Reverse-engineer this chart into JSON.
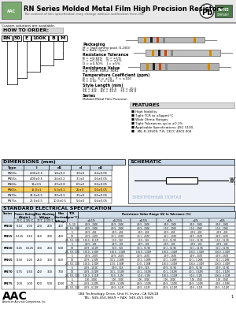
{
  "title": "RN Series Molded Metal Film High Precision Resistors",
  "subtitle": "The content of this specification may change without notification from the",
  "custom": "Custom solutions are available.",
  "order_parts": [
    "RN",
    "50",
    "E",
    "100K",
    "B",
    "M"
  ],
  "packaging_label": "Packaging",
  "packaging_text": "M = Tape ammo pack (1,000)\nB = Bulk (1pcs)",
  "resistance_tol_label": "Resistance Tolerance",
  "resistance_tol_lines": [
    "B = ±0.10%    E = ±1%",
    "C = ±0.25%    D = ±2%",
    "D = ±0.50%    J = ±5%"
  ],
  "resistance_val_label": "Resistance Value",
  "resistance_val_text": "e.g. 100R, 60R2, 30K1",
  "temp_coef_label": "Temperature Coefficient (ppm)",
  "temp_coef_lines": [
    "B = ±5    E = ±25    F = ±100",
    "R = ±10    C = ±50"
  ],
  "style_length_label": "Style Length (mm)",
  "style_length_lines": [
    "50 = 2.6    60 = 10.5    70 = 20.0",
    "55 = 4.8    65 = 15.0    75 = 25.0"
  ],
  "series_label": "Series",
  "series_text": "Molded Metal Film Precision",
  "features_label": "FEATURES",
  "features": [
    "High Stability",
    "Tight TCR to ±5ppm/°C",
    "Wide Ohmic Ranges",
    "Tight Tolerances up to ±0.1%",
    "Applicable Specifications: JISC 5100,",
    "  MIL-R-10509, T-R, CECC 4001 004"
  ],
  "schematic_label": "SCHEMATIC",
  "dimensions_label": "DIMENSIONS (mm)",
  "dim_headers": [
    "Type",
    "l",
    "d1",
    "d",
    "d2"
  ],
  "dim_col_ws": [
    28,
    32,
    28,
    24,
    28
  ],
  "dim_rows": [
    [
      "RN50s",
      "2.00±0.5",
      "1.8±0.2",
      "3.0±0",
      "0.4±0.05"
    ],
    [
      "RN55s",
      "4.00±0.5",
      "2.4±0.2",
      "3.1±0",
      "0.6±0.05"
    ],
    [
      "RN60s",
      "11±0.5",
      "2.9±0.8",
      "6.5±0",
      "0.6±0.05"
    ],
    [
      "RN65s",
      "15.0±1",
      "5.3±0.1",
      "25±0",
      "0.6±0.05"
    ],
    [
      "RN70s",
      "24.0±0.5",
      "9.0±0.5",
      "3.5±0",
      "0.6±0.05"
    ],
    [
      "RN75s",
      "26.0±0.5",
      "10.0±0.5",
      "5.6±0",
      "0.6±0.05"
    ]
  ],
  "highlight_row": 3,
  "std_elec_label": "STANDARD ELECTRICAL SPECIFICATION",
  "tol_headers": [
    "±0.1%",
    "±0.25%",
    "±0.5%",
    "±1%",
    "±2%",
    "±5%"
  ],
  "elec_rows": [
    {
      "series": "RN50",
      "w70": "0.10",
      "w125": "0.05",
      "mv70": "200",
      "mv125": "200",
      "ov": "400",
      "tcr_rows": [
        {
          "tcr": "5, 10",
          "t01": "49.9 – 200K",
          "t025": "49.9 – 200K",
          "t05": "49.9 – 200K",
          "t1": "49.9 – 200K",
          "t2": "49.9 – 200K",
          "t5": "49.9 – 200K"
        },
        {
          "tcr": "25, 50, 100",
          "t01": "49.9 – 200K",
          "t025": "49.9 – 200K",
          "t05": "49.9 – 200K",
          "t1": "10.0 – 200K",
          "t2": "10.0 – 200K",
          "t5": "10.0 – 200K"
        }
      ]
    },
    {
      "series": "RN55",
      "w70": "0.125",
      "w125": "0.10",
      "mv70": "250",
      "mv125": "200",
      "ov": "400",
      "tcr_rows": [
        {
          "tcr": "5",
          "t01": "49.9 – 40K",
          "t025": "49.9 – 40K",
          "t05": "49.9 – 40K",
          "t1": "49.9 – 40K",
          "t2": "49.9 – 40K",
          "t5": "49.9 – 40K"
        },
        {
          "tcr": "10",
          "t01": "49.9 – 247K",
          "t025": "30.1 – 267K",
          "t05": "30.1 – 267K",
          "t1": "49.1 – 267K",
          "t2": "49.9 – 267K",
          "t5": "49.9 – 267K"
        },
        {
          "tcr": "25, 50, 100",
          "t01": "100.0 – 10.1M",
          "t025": "10.0 – 51K",
          "t05": "10.0 – 51K",
          "t1": "10.0 – 51.9K",
          "t2": "10.0 – 51.9K",
          "t5": "10.0 – 51.9K"
        }
      ]
    },
    {
      "series": "RN60",
      "w70": "0.25",
      "w125": "0.125",
      "mv70": "300",
      "mv125": "250",
      "ov": "500",
      "tcr_rows": [
        {
          "tcr": "5",
          "t01": "49.9 – 10K",
          "t025": "49.9 – 10K",
          "t05": "49.9 – 10K",
          "t1": "49.9 – 10K",
          "t2": "49.9 – 10K",
          "t5": "49.9 – 10K"
        },
        {
          "tcr": "10",
          "t01": "49.9 – 10.1M",
          "t025": "30.0 – 51K",
          "t05": "30.1 – 51.9K",
          "t1": "30.1 – 51.9K",
          "t2": "30.1 – 51.9K",
          "t5": "30.1 – 51.9K"
        },
        {
          "tcr": "25, 50, 100",
          "t01": "100.0 – 1.00M",
          "t025": "100.0 – 1.00M",
          "t05": "100.0 – 1.00M",
          "t1": "100.0 – 1.00M",
          "t2": "100.0 – 1.00M",
          "t5": "100.0 – 1.00M"
        }
      ]
    },
    {
      "series": "RN65",
      "w70": "0.50",
      "w125": "0.25",
      "mv70": "250",
      "mv125": "300",
      "ov": "600",
      "tcr_rows": [
        {
          "tcr": "5",
          "t01": "49.9 – 267K",
          "t025": "49.9 – 267K",
          "t05": "49.9 – 267K",
          "t1": "49.9 – 267K",
          "t2": "49.9 – 267K",
          "t5": "49.9 – 267K"
        },
        {
          "tcr": "10",
          "t01": "49.9 – 1.00M",
          "t025": "30.1 – 1.00M",
          "t05": "30.1 – 1.00M",
          "t1": "30.1 – 1.00M",
          "t2": "30.1 – 1.00M",
          "t5": "30.1 – 1.00M"
        },
        {
          "tcr": "25, 50, 100",
          "t01": "100.0 – 1.00M",
          "t025": "10.0 – 1.00M",
          "t05": "10.0 – 1.00M",
          "t1": "100.0 – 1.00M",
          "t2": "100.0 – 1.00M",
          "t5": "100.0 – 1.00M"
        }
      ]
    },
    {
      "series": "RN70",
      "w70": "0.75",
      "w125": "0.50",
      "mv70": "400",
      "mv125": "300",
      "ov": "700",
      "tcr_rows": [
        {
          "tcr": "5",
          "t01": "49.9 – 10.1K",
          "t025": "49.9 – 51K",
          "t05": "49.9 – 51K",
          "t1": "49.9 – 51.9K",
          "t2": "49.9 – 51.9K",
          "t5": "49.9 – 51.9K"
        },
        {
          "tcr": "10",
          "t01": "49.9 – 3.52M",
          "t025": "30.1 – 3.52M",
          "t05": "30.1 – 3.52M",
          "t1": "30.1 – 3.52M",
          "t2": "30.1 – 3.52M",
          "t5": "30.1 – 3.52M"
        },
        {
          "tcr": "25, 50, 100",
          "t01": "100.0 – 5.11M",
          "t025": "50.0 – 5.1M",
          "t05": "50.0 – 5.1M",
          "t1": "100.0 – 5.11M",
          "t2": "50.0 – 5.1M",
          "t5": "100.0 – 5.11M"
        }
      ]
    },
    {
      "series": "RN75",
      "w70": "1.00",
      "w125": "1.00",
      "mv70": "600",
      "mv125": "500",
      "ov": "1000",
      "tcr_rows": [
        {
          "tcr": "5",
          "t01": "100 – 301K",
          "t025": "100 – 301K",
          "t05": "100 – 301K",
          "t1": "100 – 301K",
          "t2": "100 – 301K",
          "t5": "100 – 301K"
        },
        {
          "tcr": "10",
          "t01": "49.9 – 1.00M",
          "t025": "49.9 – 1.00M",
          "t05": "49.9 – 1.00M",
          "t1": "49.9 – 1.00M",
          "t2": "49.9 – 1.00M",
          "t5": "49.9 – 1.00M"
        },
        {
          "tcr": "25, 50, 100",
          "t01": "49.9 – 6.11M",
          "t025": "49.9 – 6.1M",
          "t05": "49.9 – 6.1M",
          "t1": "49.9 – 6.11M",
          "t2": "49.9 – 6.1M",
          "t5": "49.9 – 6.11M"
        }
      ]
    }
  ],
  "footer_address": "188 Technology Drive, Unit H, Irvine, CA 92618",
  "footer_tel": "TEL: 949-450-9669 • FAX: 949-453-9669",
  "page_num": "1"
}
